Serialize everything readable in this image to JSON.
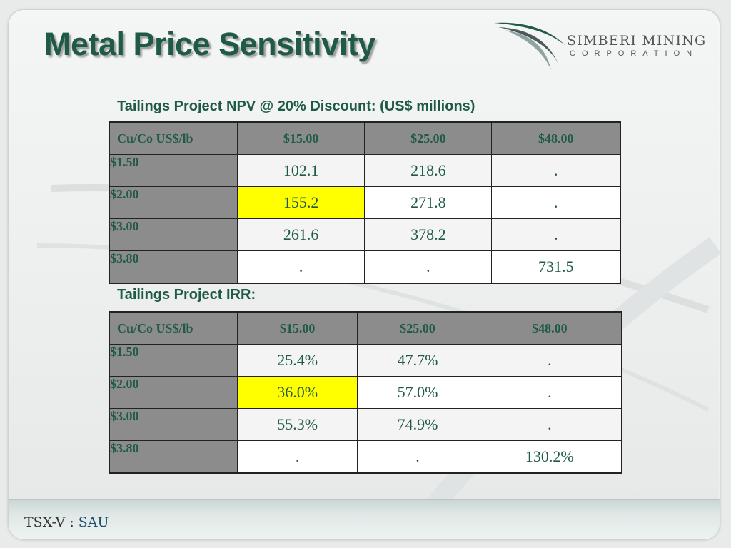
{
  "title": "Metal Price Sensitivity",
  "logo": {
    "name": "SIMBERI MINING",
    "sub": "CORPORATION"
  },
  "npv_table": {
    "caption": "Tailings Project NPV @ 20% Discount: (US$ millions)",
    "corner": "Cu/Co  US$/lb",
    "columns": [
      "$15.00",
      "$25.00",
      "$48.00"
    ],
    "rows": [
      {
        "label": "$1.50",
        "values": [
          "102.1",
          "218.6",
          "."
        ]
      },
      {
        "label": "$2.00",
        "values": [
          "155.2",
          "271.8",
          "."
        ]
      },
      {
        "label": "$3.00",
        "values": [
          "261.6",
          "378.2",
          "."
        ]
      },
      {
        "label": "$3.80",
        "values": [
          ".",
          ".",
          "731.5"
        ]
      }
    ],
    "highlight_color": "#ffff00"
  },
  "irr_table": {
    "caption": "Tailings Project IRR:",
    "corner": "Cu/Co  US$/lb",
    "columns": [
      "$15.00",
      "$25.00",
      "$48.00"
    ],
    "rows": [
      {
        "label": "$1.50",
        "values": [
          "25.4%",
          "47.7%",
          "."
        ]
      },
      {
        "label": "$2.00",
        "values": [
          "36.0%",
          "57.0%",
          "."
        ]
      },
      {
        "label": "$3.00",
        "values": [
          "55.3%",
          "74.9%",
          "."
        ]
      },
      {
        "label": "$3.80",
        "values": [
          ".",
          ".",
          "130.2%"
        ]
      }
    ],
    "highlight_color": "#ffff00"
  },
  "footer": {
    "exchange": "TSX-V : ",
    "symbol": "SAU"
  },
  "colors": {
    "title_green": "#1f5a45",
    "header_gray": "#8c8c8c"
  }
}
